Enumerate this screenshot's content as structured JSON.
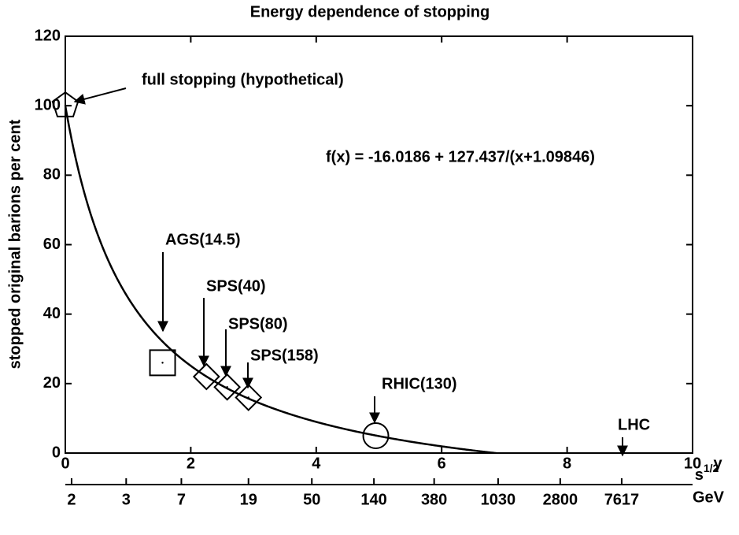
{
  "chart_data": {
    "type": "scatter",
    "title": "Energy dependence of stopping",
    "x_label": "y",
    "y_label": "stopped original barions per cent",
    "xlim": [
      0,
      10
    ],
    "ylim": [
      0,
      120
    ],
    "xticks": [
      0,
      2,
      4,
      6,
      8,
      10
    ],
    "yticks": [
      0,
      20,
      40,
      60,
      80,
      100,
      120
    ],
    "x2_label": "s",
    "x2_label_sup": "1/2",
    "x2_unit": "GeV",
    "x2ticks": [
      {
        "value": 0.1,
        "label": "2"
      },
      {
        "value": 0.97,
        "label": "3"
      },
      {
        "value": 1.85,
        "label": "7"
      },
      {
        "value": 2.92,
        "label": "19"
      },
      {
        "value": 3.93,
        "label": "50"
      },
      {
        "value": 4.92,
        "label": "140"
      },
      {
        "value": 5.88,
        "label": "380"
      },
      {
        "value": 6.9,
        "label": "1030"
      },
      {
        "value": 7.89,
        "label": "2800"
      },
      {
        "value": 8.87,
        "label": "7617"
      }
    ],
    "fit": {
      "label": "f(x) = -16.0186 + 127.437/(x+1.09846)",
      "a": -16.0186,
      "b": 127.437,
      "c": 1.09846
    },
    "points": [
      {
        "label": "full stopping (hypothetical)",
        "x": 0,
        "y": 100,
        "marker": "pentagon"
      },
      {
        "label": "AGS(14.5)",
        "x": 1.55,
        "y": 26,
        "marker": "square"
      },
      {
        "label": "SPS(40)",
        "x": 2.25,
        "y": 22,
        "marker": "diamond"
      },
      {
        "label": "SPS(80)",
        "x": 2.58,
        "y": 19,
        "marker": "diamond"
      },
      {
        "label": "SPS(158)",
        "x": 2.92,
        "y": 16,
        "marker": "diamond"
      },
      {
        "label": "RHIC(130)",
        "x": 4.95,
        "y": 5,
        "marker": "circle"
      },
      {
        "label": "LHC",
        "x": 8.9,
        "y": 0,
        "marker": "none"
      }
    ]
  }
}
